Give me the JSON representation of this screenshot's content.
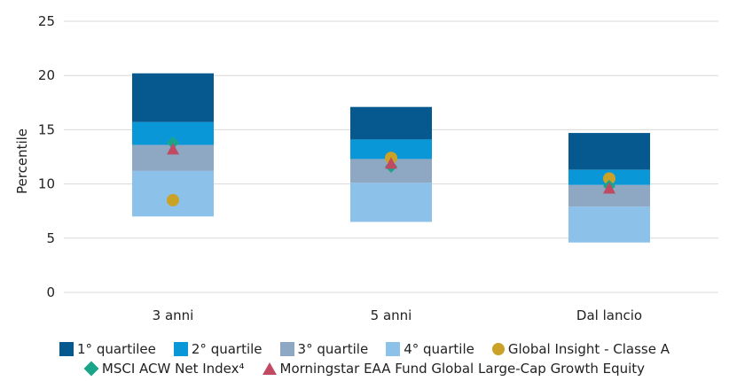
{
  "chart_data": {
    "type": "bar",
    "ylabel": "Percentile",
    "ylim": [
      0,
      25
    ],
    "yticks": [
      0,
      5,
      10,
      15,
      20,
      25
    ],
    "grid": true,
    "categories": [
      "3 anni",
      "5 anni",
      "Dal lancio"
    ],
    "quartile_bands": [
      {
        "name": "1° quartilee",
        "color": "#06598f",
        "ranges": [
          [
            15.7,
            20.2
          ],
          [
            14.1,
            17.1
          ],
          [
            11.3,
            14.7
          ]
        ]
      },
      {
        "name": "2° quartile",
        "color": "#0a97d8",
        "ranges": [
          [
            13.6,
            15.7
          ],
          [
            12.3,
            14.1
          ],
          [
            9.9,
            11.3
          ]
        ]
      },
      {
        "name": "3° quartile",
        "color": "#8ea8c4",
        "ranges": [
          [
            11.2,
            13.6
          ],
          [
            10.1,
            12.3
          ],
          [
            7.9,
            9.9
          ]
        ]
      },
      {
        "name": "4° quartile",
        "color": "#8cc2ea",
        "ranges": [
          [
            7.0,
            11.2
          ],
          [
            6.5,
            10.1
          ],
          [
            4.6,
            7.9
          ]
        ]
      }
    ],
    "series": [
      {
        "name": "Global Insight - Classe A",
        "marker": "circle",
        "color": "#c9a227",
        "values": [
          8.5,
          12.4,
          10.5
        ]
      },
      {
        "name": "MSCI ACW Net Index⁴",
        "marker": "diamond",
        "color": "#1aa58a",
        "values": [
          13.8,
          11.6,
          9.8
        ]
      },
      {
        "name": "Morningstar EAA Fund Global Large-Cap Growth Equity",
        "marker": "triangle",
        "color": "#c04a62",
        "values": [
          13.2,
          11.9,
          9.6
        ]
      }
    ],
    "legend_placement": "bottom"
  }
}
